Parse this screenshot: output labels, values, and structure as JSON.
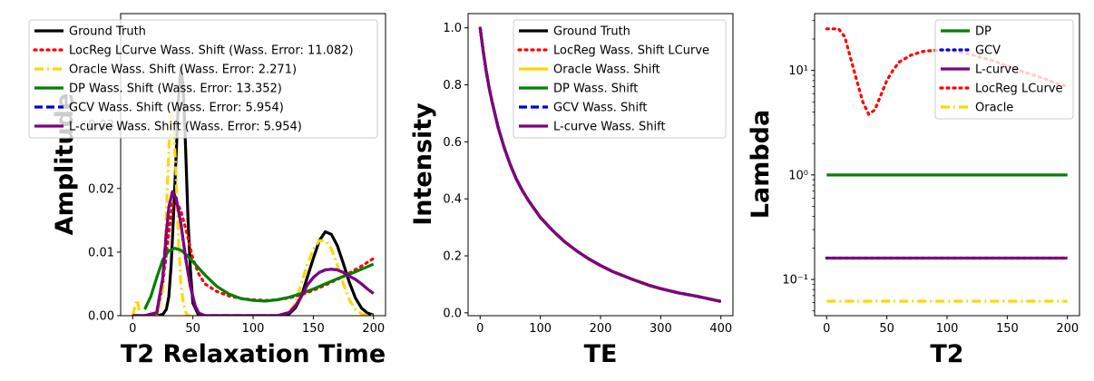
{
  "chart_data": [
    {
      "type": "line",
      "xlabel": "T2 Relaxation Time",
      "ylabel": "Amplitude",
      "xlim": [
        -10,
        210
      ],
      "ylim": [
        0,
        0.0475
      ],
      "xticks": [
        "0",
        "50",
        "100",
        "150",
        "200"
      ],
      "yticks": [
        "0.00",
        "0.01",
        "0.02",
        "0.03"
      ],
      "legend_position": "top-left",
      "grid": false,
      "series": [
        {
          "name": "Ground Truth",
          "color": "#000000",
          "style": "solid",
          "x": [
            0,
            10,
            20,
            25,
            28,
            30,
            32,
            34,
            36,
            38,
            40,
            42,
            44,
            46,
            48,
            50,
            55,
            60,
            80,
            100,
            120,
            130,
            135,
            140,
            145,
            150,
            155,
            160,
            165,
            170,
            175,
            180,
            185,
            190,
            195,
            200
          ],
          "y": [
            0,
            0,
            0,
            0.0002,
            0.001,
            0.003,
            0.008,
            0.016,
            0.025,
            0.034,
            0.039,
            0.036,
            0.026,
            0.015,
            0.007,
            0.002,
            0,
            0,
            0,
            0,
            0,
            0.0003,
            0.0012,
            0.003,
            0.006,
            0.009,
            0.0118,
            0.0132,
            0.0128,
            0.011,
            0.0082,
            0.0052,
            0.0028,
            0.0012,
            0.0004,
            0.0001
          ]
        },
        {
          "name": "LocReg LCurve Wass. Shift (Wass. Error: 11.082)",
          "color": "#ff0000",
          "style": "dotted",
          "x": [
            0,
            5,
            10,
            15,
            20,
            25,
            30,
            33,
            36,
            40,
            45,
            50,
            55,
            60,
            70,
            80,
            90,
            100,
            110,
            120,
            130,
            140,
            150,
            160,
            170,
            180,
            190,
            200
          ],
          "y": [
            0,
            0,
            0,
            0,
            0.0003,
            0.005,
            0.013,
            0.0175,
            0.018,
            0.0165,
            0.013,
            0.009,
            0.0065,
            0.005,
            0.0038,
            0.0031,
            0.0027,
            0.0025,
            0.0024,
            0.0025,
            0.0028,
            0.0033,
            0.004,
            0.0048,
            0.0057,
            0.0067,
            0.0078,
            0.009
          ]
        },
        {
          "name": "Oracle Wass. Shift (Wass. Error: 2.271)",
          "color": "#ffd700",
          "style": "dashdot",
          "x": [
            0,
            2,
            4,
            6,
            10,
            20,
            25,
            28,
            30,
            32,
            34,
            36,
            38,
            40,
            42,
            45,
            50,
            55,
            60,
            80,
            100,
            120,
            130,
            135,
            140,
            145,
            150,
            155,
            160,
            165,
            170,
            175,
            180,
            185,
            190,
            195,
            200
          ],
          "y": [
            0,
            0.0015,
            0.0025,
            0,
            0,
            0,
            0.004,
            0.016,
            0.026,
            0.032,
            0.03,
            0.022,
            0.012,
            0.005,
            0.002,
            0,
            0,
            0,
            0,
            0,
            0,
            0,
            0.0005,
            0.002,
            0.005,
            0.008,
            0.0105,
            0.0118,
            0.0118,
            0.0105,
            0.008,
            0.005,
            0.0025,
            0.001,
            0.0003,
            0,
            0
          ]
        },
        {
          "name": "DP Wass. Shift (Wass. Error: 13.352)",
          "color": "#008000",
          "style": "solid",
          "x": [
            10,
            15,
            20,
            25,
            30,
            35,
            40,
            45,
            50,
            60,
            70,
            80,
            90,
            100,
            110,
            120,
            130,
            140,
            150,
            160,
            170,
            180,
            190,
            200
          ],
          "y": [
            0.001,
            0.003,
            0.006,
            0.0088,
            0.0102,
            0.0106,
            0.0103,
            0.0095,
            0.0085,
            0.0064,
            0.0046,
            0.0034,
            0.0027,
            0.0024,
            0.0023,
            0.0025,
            0.0029,
            0.0035,
            0.0042,
            0.005,
            0.0058,
            0.0065,
            0.0073,
            0.0081
          ]
        },
        {
          "name": "GCV Wass. Shift (Wass. Error: 5.954)",
          "color": "#0000dd",
          "style": "dashed",
          "x": [
            0,
            10,
            20,
            25,
            28,
            30,
            33,
            36,
            40,
            44,
            48,
            52,
            55,
            60,
            80,
            100,
            120,
            130,
            135,
            140,
            145,
            150,
            155,
            160,
            165,
            170,
            175,
            180,
            185,
            190,
            195,
            200
          ],
          "y": [
            0,
            0,
            0.0005,
            0.006,
            0.013,
            0.017,
            0.0195,
            0.0185,
            0.0145,
            0.009,
            0.0045,
            0.0015,
            0.0004,
            0,
            0,
            0,
            0,
            0.0005,
            0.0015,
            0.003,
            0.0048,
            0.006,
            0.0068,
            0.0072,
            0.0073,
            0.0072,
            0.0068,
            0.0062,
            0.0057,
            0.005,
            0.0042,
            0.0035
          ]
        },
        {
          "name": "L-curve Wass. Shift (Wass. Error: 5.954)",
          "color": "#800080",
          "style": "solid",
          "x": [
            0,
            10,
            20,
            25,
            28,
            30,
            33,
            36,
            40,
            44,
            48,
            52,
            55,
            60,
            80,
            100,
            120,
            130,
            135,
            140,
            145,
            150,
            155,
            160,
            165,
            170,
            175,
            180,
            185,
            190,
            195,
            200
          ],
          "y": [
            0,
            0,
            0.0005,
            0.006,
            0.013,
            0.017,
            0.0195,
            0.0185,
            0.0145,
            0.009,
            0.0045,
            0.0015,
            0.0004,
            0,
            0,
            0,
            0,
            0.0005,
            0.0015,
            0.003,
            0.0048,
            0.006,
            0.0068,
            0.0072,
            0.0073,
            0.0072,
            0.0068,
            0.0062,
            0.0057,
            0.005,
            0.0042,
            0.0035
          ]
        }
      ]
    },
    {
      "type": "line",
      "xlabel": "TE",
      "ylabel": "Intensity",
      "xlim": [
        -20,
        420
      ],
      "ylim": [
        -0.01,
        1.05
      ],
      "xticks": [
        "0",
        "100",
        "200",
        "300",
        "400"
      ],
      "yticks": [
        "0.0",
        "0.2",
        "0.4",
        "0.6",
        "0.8",
        "1.0"
      ],
      "legend_position": "top-right",
      "grid": false,
      "x": [
        0,
        5,
        10,
        15,
        20,
        30,
        40,
        50,
        60,
        70,
        80,
        90,
        100,
        120,
        140,
        160,
        180,
        200,
        220,
        250,
        280,
        300,
        330,
        360,
        400
      ],
      "series": [
        {
          "name": "Ground Truth",
          "color": "#000000",
          "style": "solid",
          "y": [
            1.0,
            0.92,
            0.85,
            0.79,
            0.74,
            0.65,
            0.58,
            0.52,
            0.47,
            0.43,
            0.395,
            0.365,
            0.335,
            0.29,
            0.25,
            0.218,
            0.19,
            0.166,
            0.145,
            0.12,
            0.097,
            0.085,
            0.07,
            0.058,
            0.04
          ]
        },
        {
          "name": "LocReg Wass. Shift LCurve",
          "color": "#ff0000",
          "style": "dotted",
          "y": [
            1.0,
            0.92,
            0.85,
            0.79,
            0.74,
            0.65,
            0.58,
            0.52,
            0.47,
            0.43,
            0.395,
            0.365,
            0.335,
            0.29,
            0.25,
            0.218,
            0.19,
            0.166,
            0.145,
            0.12,
            0.097,
            0.085,
            0.07,
            0.058,
            0.04
          ]
        },
        {
          "name": "Oracle Wass. Shift",
          "color": "#ffd700",
          "style": "solid",
          "y": [
            1.0,
            0.92,
            0.85,
            0.79,
            0.74,
            0.65,
            0.58,
            0.52,
            0.47,
            0.43,
            0.395,
            0.365,
            0.335,
            0.29,
            0.25,
            0.218,
            0.19,
            0.166,
            0.145,
            0.12,
            0.097,
            0.085,
            0.07,
            0.058,
            0.04
          ]
        },
        {
          "name": "DP Wass. Shift",
          "color": "#008000",
          "style": "solid",
          "y": [
            1.0,
            0.92,
            0.85,
            0.79,
            0.74,
            0.65,
            0.58,
            0.52,
            0.47,
            0.43,
            0.395,
            0.365,
            0.335,
            0.29,
            0.25,
            0.218,
            0.19,
            0.166,
            0.145,
            0.12,
            0.097,
            0.085,
            0.07,
            0.058,
            0.04
          ]
        },
        {
          "name": "GCV Wass. Shift",
          "color": "#0000dd",
          "style": "dashed",
          "y": [
            1.0,
            0.92,
            0.85,
            0.79,
            0.74,
            0.65,
            0.58,
            0.52,
            0.47,
            0.43,
            0.395,
            0.365,
            0.335,
            0.29,
            0.25,
            0.218,
            0.19,
            0.166,
            0.145,
            0.12,
            0.097,
            0.085,
            0.07,
            0.058,
            0.04
          ]
        },
        {
          "name": "L-curve Wass. Shift",
          "color": "#800080",
          "style": "solid",
          "y": [
            1.0,
            0.92,
            0.85,
            0.79,
            0.74,
            0.65,
            0.58,
            0.52,
            0.47,
            0.43,
            0.395,
            0.365,
            0.335,
            0.29,
            0.25,
            0.218,
            0.19,
            0.166,
            0.145,
            0.12,
            0.097,
            0.085,
            0.07,
            0.058,
            0.04
          ]
        }
      ]
    },
    {
      "type": "line",
      "xlabel": "T2",
      "ylabel": "Lambda",
      "yscale": "log",
      "xlim": [
        -10,
        210
      ],
      "ylim": [
        0.045,
        35
      ],
      "xticks": [
        "0",
        "50",
        "100",
        "150",
        "200"
      ],
      "ytick_values": [
        0.1,
        1,
        10
      ],
      "yticks": [
        "10⁻¹",
        "10⁰",
        "10¹"
      ],
      "legend_position": "top-right",
      "grid": false,
      "series": [
        {
          "name": "DP",
          "color": "#008000",
          "style": "solid",
          "x": [
            0,
            200
          ],
          "y": [
            1.0,
            1.0
          ]
        },
        {
          "name": "GCV",
          "color": "#0000dd",
          "style": "dotted",
          "x": [
            0,
            200
          ],
          "y": [
            0.16,
            0.16
          ]
        },
        {
          "name": "L-curve",
          "color": "#800080",
          "style": "solid",
          "x": [
            0,
            200
          ],
          "y": [
            0.16,
            0.16
          ]
        },
        {
          "name": "LocReg LCurve",
          "color": "#ff0000",
          "style": "dotted",
          "x": [
            0,
            5,
            10,
            15,
            20,
            25,
            30,
            35,
            40,
            45,
            50,
            55,
            60,
            70,
            80,
            90,
            100,
            110,
            120,
            130,
            140,
            150,
            160,
            170,
            180,
            190,
            200
          ],
          "y": [
            25,
            25,
            25,
            21,
            13,
            8,
            5,
            3.8,
            4.2,
            5.8,
            8,
            10,
            12,
            14,
            15.2,
            15.6,
            15.5,
            15,
            14.2,
            13.2,
            12.2,
            11,
            10,
            9.2,
            8.4,
            7.6,
            7
          ]
        },
        {
          "name": "Oracle",
          "color": "#ffd700",
          "style": "dashdot",
          "x": [
            0,
            200
          ],
          "y": [
            0.062,
            0.062
          ]
        }
      ]
    }
  ]
}
